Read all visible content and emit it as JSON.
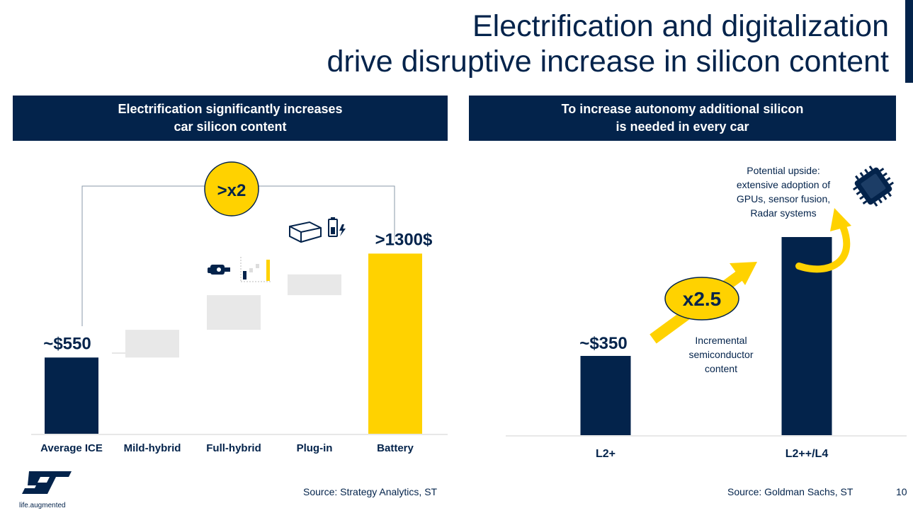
{
  "title": {
    "line1": "Electrification and digitalization",
    "line2": "drive disruptive increase in silicon content"
  },
  "left_panel": {
    "header_line1": "Electrification significantly increases",
    "header_line2": "car silicon content",
    "multiplier": ">x2",
    "source": "Source: Strategy Analytics, ST"
  },
  "right_panel": {
    "header_line1": "To increase autonomy additional silicon",
    "header_line2": "is needed in every car",
    "multiplier": "x2.5",
    "upside_lines": [
      "Potential upside:",
      "extensive adoption of",
      "GPUs, sensor fusion,",
      "Radar systems"
    ],
    "incremental_lines": [
      "Incremental",
      "semiconductor",
      "content"
    ],
    "source": "Source: Goldman Sachs, ST"
  },
  "page_number": "10",
  "logo": {
    "tagline": "life.augmented"
  },
  "colors": {
    "navy": "#03234b",
    "yellow": "#ffd200",
    "grey": "#e8e8e8"
  },
  "chart_data": [
    {
      "type": "bar",
      "subtype": "waterfall",
      "categories": [
        "Average ICE",
        "Mild-hybrid",
        "Full-hybrid",
        "Plug-in",
        "Battery"
      ],
      "base": [
        0,
        550,
        750,
        1000,
        0
      ],
      "values": [
        550,
        200,
        250,
        150,
        1300
      ],
      "data_labels": [
        "~$550",
        "",
        "",
        "",
        ">1300$"
      ],
      "ylim": [
        0,
        1450
      ],
      "series_colors": [
        "#03234b",
        "#e8e8e8",
        "#e8e8e8",
        "#e8e8e8",
        "#ffd200"
      ]
    },
    {
      "type": "bar",
      "categories": [
        "L2+",
        "L2++/L4"
      ],
      "values": [
        350,
        875
      ],
      "data_labels": [
        "~$350",
        ""
      ],
      "ylim": [
        0,
        1000
      ],
      "series_colors": [
        "#03234b",
        "#03234b"
      ]
    }
  ]
}
